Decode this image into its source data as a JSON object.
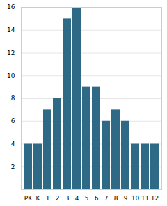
{
  "chart_data": {
    "type": "bar",
    "categories": [
      "PK",
      "K",
      "1",
      "2",
      "3",
      "4",
      "5",
      "6",
      "7",
      "8",
      "9",
      "10",
      "11",
      "12"
    ],
    "values": [
      4,
      4,
      7,
      8,
      15,
      16,
      9,
      9,
      6,
      7,
      6,
      4,
      4,
      4
    ],
    "color": "#2e6a85",
    "ylim": [
      0,
      16
    ],
    "yticks": [
      2,
      4,
      6,
      8,
      10,
      12,
      14,
      16
    ],
    "grid": true
  }
}
